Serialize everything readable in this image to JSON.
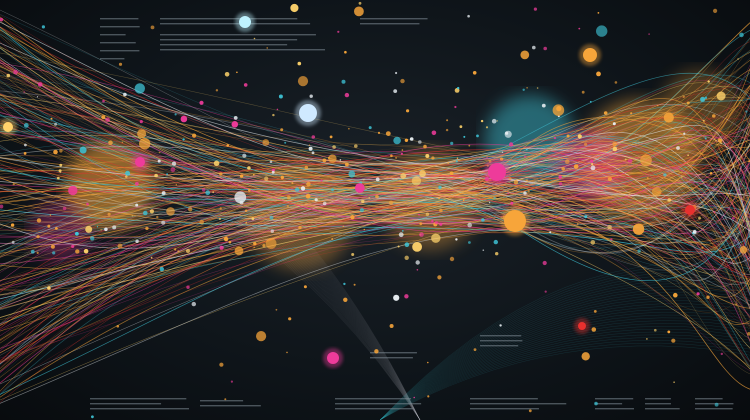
{
  "artwork": {
    "kind": "abstract network data visualization",
    "background_color": "#0e1419",
    "palette": {
      "orange": "#f7a53a",
      "yellow": "#ffd36b",
      "cyan": "#3fc7d9",
      "pink": "#ee3b9a",
      "red": "#e8302e",
      "white": "#e8eef2",
      "text_gray": "#7d8a94"
    },
    "text_blocks_legible": false
  }
}
